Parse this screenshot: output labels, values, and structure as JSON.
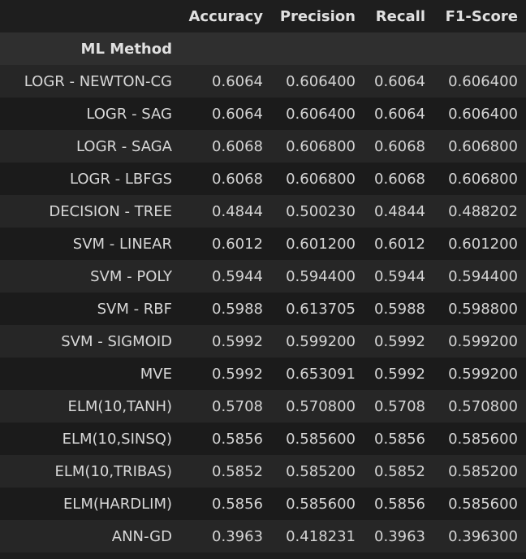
{
  "table": {
    "columns": [
      "Accuracy",
      "Precision",
      "Recall",
      "F1-Score"
    ],
    "index_name": "ML Method",
    "rows": [
      {
        "method": "LOGR - NEWTON-CG",
        "accuracy": "0.6064",
        "precision": "0.606400",
        "recall": "0.6064",
        "f1": "0.606400"
      },
      {
        "method": "LOGR - SAG",
        "accuracy": "0.6064",
        "precision": "0.606400",
        "recall": "0.6064",
        "f1": "0.606400"
      },
      {
        "method": "LOGR - SAGA",
        "accuracy": "0.6068",
        "precision": "0.606800",
        "recall": "0.6068",
        "f1": "0.606800"
      },
      {
        "method": "LOGR - LBFGS",
        "accuracy": "0.6068",
        "precision": "0.606800",
        "recall": "0.6068",
        "f1": "0.606800"
      },
      {
        "method": "DECISION - TREE",
        "accuracy": "0.4844",
        "precision": "0.500230",
        "recall": "0.4844",
        "f1": "0.488202"
      },
      {
        "method": "SVM - LINEAR",
        "accuracy": "0.6012",
        "precision": "0.601200",
        "recall": "0.6012",
        "f1": "0.601200"
      },
      {
        "method": "SVM - POLY",
        "accuracy": "0.5944",
        "precision": "0.594400",
        "recall": "0.5944",
        "f1": "0.594400"
      },
      {
        "method": "SVM - RBF",
        "accuracy": "0.5988",
        "precision": "0.613705",
        "recall": "0.5988",
        "f1": "0.598800"
      },
      {
        "method": "SVM - SIGMOID",
        "accuracy": "0.5992",
        "precision": "0.599200",
        "recall": "0.5992",
        "f1": "0.599200"
      },
      {
        "method": "MVE",
        "accuracy": "0.5992",
        "precision": "0.653091",
        "recall": "0.5992",
        "f1": "0.599200"
      },
      {
        "method": "ELM(10,TANH)",
        "accuracy": "0.5708",
        "precision": "0.570800",
        "recall": "0.5708",
        "f1": "0.570800"
      },
      {
        "method": "ELM(10,SINSQ)",
        "accuracy": "0.5856",
        "precision": "0.585600",
        "recall": "0.5856",
        "f1": "0.585600"
      },
      {
        "method": "ELM(10,TRIBAS)",
        "accuracy": "0.5852",
        "precision": "0.585200",
        "recall": "0.5852",
        "f1": "0.585200"
      },
      {
        "method": "ELM(HARDLIM)",
        "accuracy": "0.5856",
        "precision": "0.585600",
        "recall": "0.5856",
        "f1": "0.585600"
      },
      {
        "method": "ANN-GD",
        "accuracy": "0.3963",
        "precision": "0.418231",
        "recall": "0.3963",
        "f1": "0.396300"
      }
    ]
  }
}
